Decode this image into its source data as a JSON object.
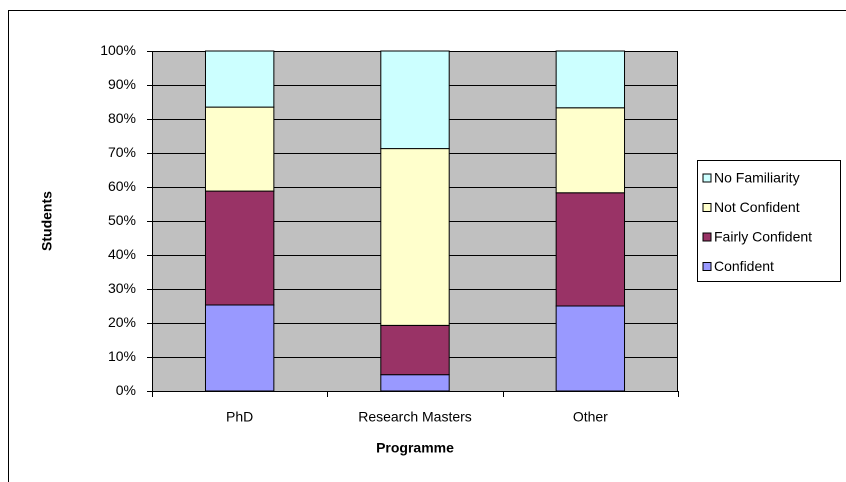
{
  "chart_data": {
    "type": "stacked_bar",
    "categories": [
      "PhD",
      "Research Masters",
      "Other"
    ],
    "series": [
      {
        "name": "Confident",
        "color": "#9999ff",
        "values": [
          25.3,
          4.8,
          25
        ]
      },
      {
        "name": "Fairly Confident",
        "color": "#993366",
        "values": [
          33.5,
          14.5,
          33.3
        ]
      },
      {
        "name": "Not Confident",
        "color": "#ffffcc",
        "values": [
          24.7,
          52,
          25
        ]
      },
      {
        "name": "No Familiarity",
        "color": "#ccffff",
        "values": [
          16.5,
          28.7,
          16.7
        ]
      }
    ],
    "xlabel": "Programme",
    "ylabel": "Students",
    "ylim": [
      0,
      100
    ],
    "yticks": [
      {
        "value": 0,
        "label": "0%"
      },
      {
        "value": 10,
        "label": "10%"
      },
      {
        "value": 20,
        "label": "20%"
      },
      {
        "value": 30,
        "label": "30%"
      },
      {
        "value": 40,
        "label": "40%"
      },
      {
        "value": 50,
        "label": "50%"
      },
      {
        "value": 60,
        "label": "60%"
      },
      {
        "value": 70,
        "label": "70%"
      },
      {
        "value": 80,
        "label": "80%"
      },
      {
        "value": 90,
        "label": "90%"
      },
      {
        "value": 100,
        "label": "100%"
      }
    ],
    "grid": true,
    "legend": "right",
    "plot_background": "#c0c0c0"
  }
}
